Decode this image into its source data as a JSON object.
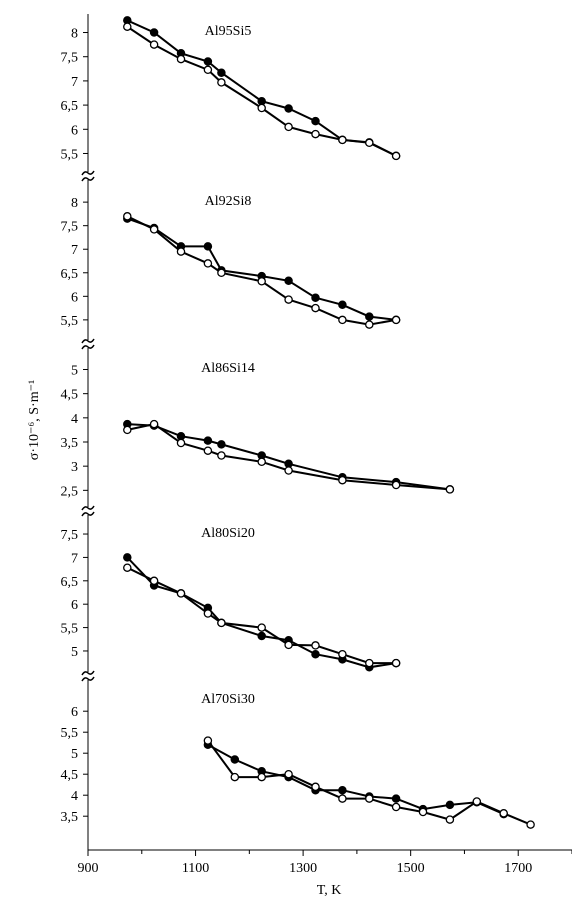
{
  "chart_data": {
    "type": "line",
    "xlabel": "T, K",
    "ylabel": "σ·10⁻⁶, S·m⁻¹",
    "xlim": [
      900,
      1800
    ],
    "xticks": [
      "900",
      "1100",
      "1300",
      "1500",
      "1700"
    ],
    "xtick_values": [
      900,
      1100,
      1300,
      1500,
      1700
    ],
    "grid": false,
    "series_styles": {
      "filled": "#000000",
      "open": "#ffffff"
    },
    "panels": [
      {
        "title": "Al95Si5",
        "ylim": [
          5.2,
          8.3
        ],
        "yticks": [
          "5,5",
          "6",
          "6,5",
          "7",
          "7,5",
          "8"
        ],
        "ytick_values": [
          5.5,
          6,
          6.5,
          7,
          7.5,
          8
        ],
        "series": [
          {
            "marker": "filled",
            "x": [
              973,
              1023,
              1073,
              1123,
              1148,
              1223,
              1273,
              1323,
              1373,
              1423,
              1473
            ],
            "y": [
              8.25,
              8.0,
              7.57,
              7.4,
              7.17,
              6.58,
              6.43,
              6.17,
              5.78,
              5.73,
              5.45
            ]
          },
          {
            "marker": "open",
            "x": [
              973,
              1023,
              1073,
              1123,
              1148,
              1223,
              1273,
              1323,
              1373,
              1423,
              1473
            ],
            "y": [
              8.12,
              7.75,
              7.45,
              7.23,
              6.97,
              6.44,
              6.05,
              5.9,
              5.78,
              5.72,
              5.45
            ]
          }
        ]
      },
      {
        "title": "Al92Si8",
        "ylim": [
          5.2,
          8.3
        ],
        "yticks": [
          "5,5",
          "6",
          "6,5",
          "7",
          "7,5",
          "8"
        ],
        "ytick_values": [
          5.5,
          6,
          6.5,
          7,
          7.5,
          8
        ],
        "series": [
          {
            "marker": "filled",
            "x": [
              973,
              1023,
              1073,
              1123,
              1148,
              1223,
              1273,
              1323,
              1373,
              1423,
              1473
            ],
            "y": [
              7.65,
              7.45,
              7.06,
              7.06,
              6.55,
              6.43,
              6.33,
              5.97,
              5.82,
              5.57,
              5.5
            ]
          },
          {
            "marker": "open",
            "x": [
              973,
              1023,
              1073,
              1123,
              1148,
              1223,
              1273,
              1323,
              1373,
              1423,
              1473
            ],
            "y": [
              7.7,
              7.42,
              6.95,
              6.7,
              6.5,
              6.32,
              5.93,
              5.75,
              5.5,
              5.4,
              5.5
            ]
          }
        ]
      },
      {
        "title": "Al86Si14",
        "ylim": [
          2.3,
          5.3
        ],
        "yticks": [
          "2,5",
          "3",
          "3,5",
          "4",
          "4,5",
          "5"
        ],
        "ytick_values": [
          2.5,
          3,
          3.5,
          4,
          4.5,
          5
        ],
        "series": [
          {
            "marker": "filled",
            "x": [
              973,
              1023,
              1073,
              1123,
              1148,
              1223,
              1273,
              1373,
              1473,
              1573
            ],
            "y": [
              3.87,
              3.84,
              3.62,
              3.53,
              3.45,
              3.22,
              3.05,
              2.77,
              2.67,
              2.52
            ]
          },
          {
            "marker": "open",
            "x": [
              973,
              1023,
              1073,
              1123,
              1148,
              1223,
              1273,
              1373,
              1473,
              1573
            ],
            "y": [
              3.75,
              3.87,
              3.48,
              3.32,
              3.22,
              3.09,
              2.91,
              2.71,
              2.61,
              2.52
            ]
          }
        ]
      },
      {
        "title": "Al80Si20",
        "ylim": [
          4.7,
          7.8
        ],
        "yticks": [
          "5",
          "5,5",
          "6",
          "6,5",
          "7",
          "7,5"
        ],
        "ytick_values": [
          5,
          5.5,
          6,
          6.5,
          7,
          7.5
        ],
        "series": [
          {
            "marker": "filled",
            "x": [
              973,
              1023,
              1073,
              1123,
              1148,
              1223,
              1273,
              1323,
              1373,
              1423,
              1473
            ],
            "y": [
              7.0,
              6.4,
              6.23,
              5.92,
              5.6,
              5.32,
              5.23,
              4.93,
              4.82,
              4.65,
              4.74
            ]
          },
          {
            "marker": "open",
            "x": [
              973,
              1023,
              1073,
              1123,
              1148,
              1223,
              1273,
              1323,
              1373,
              1423,
              1473
            ],
            "y": [
              6.78,
              6.5,
              6.23,
              5.8,
              5.6,
              5.5,
              5.13,
              5.12,
              4.93,
              4.74,
              4.74
            ]
          }
        ]
      },
      {
        "title": "Al70Si30",
        "ylim": [
          3.1,
          6.6
        ],
        "yticks": [
          "3,5",
          "4",
          "4,5",
          "5",
          "5,5",
          "6"
        ],
        "ytick_values": [
          3.5,
          4,
          4.5,
          5,
          5.5,
          6
        ],
        "series": [
          {
            "marker": "filled",
            "x": [
              1123,
              1173,
              1223,
              1273,
              1323,
              1373,
              1423,
              1473,
              1523,
              1573,
              1623,
              1673
            ],
            "y": [
              5.2,
              4.85,
              4.57,
              4.43,
              4.12,
              4.12,
              3.97,
              3.92,
              3.67,
              3.77,
              3.83,
              3.55
            ]
          },
          {
            "marker": "open",
            "x": [
              1123,
              1173,
              1223,
              1273,
              1323,
              1373,
              1423,
              1473,
              1523,
              1573,
              1623,
              1673,
              1723
            ],
            "y": [
              5.3,
              4.43,
              4.43,
              4.5,
              4.2,
              3.92,
              3.92,
              3.72,
              3.6,
              3.42,
              3.85,
              3.57,
              3.3
            ]
          }
        ]
      }
    ]
  }
}
